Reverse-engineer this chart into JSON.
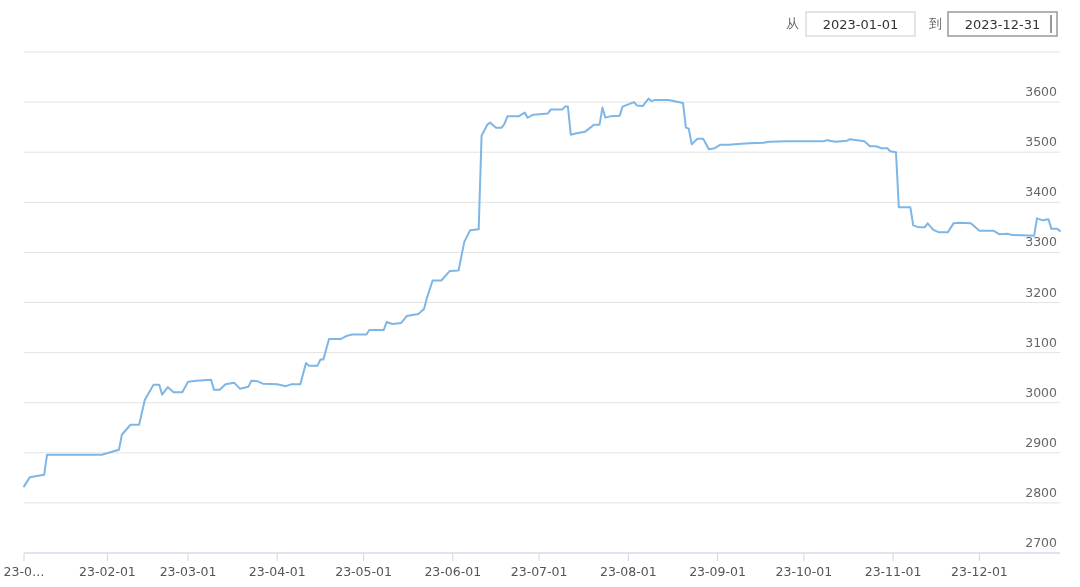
{
  "chart_data": {
    "type": "line",
    "annotations": [
      "从",
      "2023-01-01",
      "到",
      "2023-12-31"
    ],
    "xlim": [
      "2023-01-03",
      "2023-12-29"
    ],
    "ylim": [
      2700,
      3700
    ],
    "xticks": [
      {
        "value": "2023-01-03",
        "label": "23-0…"
      },
      {
        "value": "2023-02-01",
        "label": "23-02-01"
      },
      {
        "value": "2023-03-01",
        "label": "23-03-01"
      },
      {
        "value": "2023-04-01",
        "label": "23-04-01"
      },
      {
        "value": "2023-05-01",
        "label": "23-05-01"
      },
      {
        "value": "2023-06-01",
        "label": "23-06-01"
      },
      {
        "value": "2023-07-01",
        "label": "23-07-01"
      },
      {
        "value": "2023-08-01",
        "label": "23-08-01"
      },
      {
        "value": "2023-09-01",
        "label": "23-09-01"
      },
      {
        "value": "2023-10-01",
        "label": "23-10-01"
      },
      {
        "value": "2023-11-01",
        "label": "23-11-01"
      },
      {
        "value": "2023-12-01",
        "label": "23-12-01"
      }
    ],
    "yticks": [
      2700,
      2800,
      2900,
      3000,
      3100,
      3200,
      3300,
      3400,
      3500,
      3600,
      {
        "value": 3700,
        "label": null
      }
    ],
    "grid": "y",
    "x": [
      "2023-01-03",
      "2023-01-05",
      "2023-01-10",
      "2023-01-11",
      "2023-01-30",
      "2023-02-05",
      "2023-02-06",
      "2023-02-09",
      "2023-02-12",
      "2023-02-14",
      "2023-02-17",
      "2023-02-19",
      "2023-02-20",
      "2023-02-22",
      "2023-02-24",
      "2023-02-27",
      "2023-03-01",
      "2023-03-04",
      "2023-03-09",
      "2023-03-10",
      "2023-03-12",
      "2023-03-14",
      "2023-03-17",
      "2023-03-19",
      "2023-03-22",
      "2023-03-23",
      "2023-03-25",
      "2023-03-27",
      "2023-04-01",
      "2023-04-04",
      "2023-04-06",
      "2023-04-09",
      "2023-04-11",
      "2023-04-12",
      "2023-04-15",
      "2023-04-16",
      "2023-04-17",
      "2023-04-19",
      "2023-04-23",
      "2023-04-25",
      "2023-04-27",
      "2023-05-02",
      "2023-05-03",
      "2023-05-08",
      "2023-05-09",
      "2023-05-11",
      "2023-05-14",
      "2023-05-16",
      "2023-05-20",
      "2023-05-22",
      "2023-05-23",
      "2023-05-25",
      "2023-05-28",
      "2023-05-31",
      "2023-06-03",
      "2023-06-05",
      "2023-06-07",
      "2023-06-10",
      "2023-06-11",
      "2023-06-13",
      "2023-06-14",
      "2023-06-16",
      "2023-06-18",
      "2023-06-19",
      "2023-06-20",
      "2023-06-24",
      "2023-06-26",
      "2023-06-27",
      "2023-06-29",
      "2023-07-04",
      "2023-07-05",
      "2023-07-09",
      "2023-07-10",
      "2023-07-11",
      "2023-07-12",
      "2023-07-14",
      "2023-07-17",
      "2023-07-19",
      "2023-07-20",
      "2023-07-22",
      "2023-07-23",
      "2023-07-24",
      "2023-07-26",
      "2023-07-29",
      "2023-07-30",
      "2023-08-03",
      "2023-08-04",
      "2023-08-06",
      "2023-08-08",
      "2023-08-09",
      "2023-08-10",
      "2023-08-15",
      "2023-08-20",
      "2023-08-21",
      "2023-08-22",
      "2023-08-23",
      "2023-08-25",
      "2023-08-27",
      "2023-08-29",
      "2023-08-31",
      "2023-09-02",
      "2023-09-05",
      "2023-09-07",
      "2023-09-12",
      "2023-09-17",
      "2023-09-19",
      "2023-09-25",
      "2023-10-08",
      "2023-10-09",
      "2023-10-12",
      "2023-10-16",
      "2023-10-17",
      "2023-10-22",
      "2023-10-24",
      "2023-10-26",
      "2023-10-28",
      "2023-10-30",
      "2023-10-31",
      "2023-11-02",
      "2023-11-03",
      "2023-11-07",
      "2023-11-08",
      "2023-11-10",
      "2023-11-12",
      "2023-11-13",
      "2023-11-15",
      "2023-11-17",
      "2023-11-20",
      "2023-11-22",
      "2023-11-24",
      "2023-11-28",
      "2023-12-01",
      "2023-12-06",
      "2023-12-08",
      "2023-12-11",
      "2023-12-12",
      "2023-12-20",
      "2023-12-21",
      "2023-12-23",
      "2023-12-25",
      "2023-12-26",
      "2023-12-28",
      "2023-12-29"
    ],
    "series": [
      {
        "color": "#7eb6e6",
        "values": [
          2833,
          2851,
          2856,
          2896,
          2896,
          2906,
          2936,
          2956,
          2956,
          3006,
          3036,
          3036,
          3016,
          3031,
          3021,
          3021,
          3042,
          3044,
          3046,
          3026,
          3026,
          3037,
          3040,
          3028,
          3032,
          3044,
          3043,
          3038,
          3037,
          3033,
          3037,
          3037,
          3079,
          3074,
          3074,
          3086,
          3086,
          3127,
          3127,
          3133,
          3136,
          3136,
          3145,
          3145,
          3161,
          3157,
          3159,
          3173,
          3177,
          3187,
          3209,
          3244,
          3244,
          3263,
          3264,
          3321,
          3344,
          3346,
          3533,
          3555,
          3559,
          3549,
          3549,
          3557,
          3572,
          3572,
          3579,
          3569,
          3575,
          3577,
          3585,
          3585,
          3591,
          3591,
          3535,
          3538,
          3541,
          3550,
          3555,
          3555,
          3589,
          3569,
          3572,
          3573,
          3591,
          3600,
          3593,
          3592,
          3607,
          3602,
          3604,
          3604,
          3598,
          3549,
          3547,
          3516,
          3527,
          3527,
          3506,
          3508,
          3515,
          3515,
          3516,
          3518,
          3519,
          3521,
          3522,
          3522,
          3524,
          3521,
          3523,
          3526,
          3522,
          3512,
          3512,
          3508,
          3508,
          3502,
          3500,
          3390,
          3390,
          3354,
          3350,
          3350,
          3358,
          3345,
          3340,
          3340,
          3358,
          3359,
          3358,
          3343,
          3343,
          3336,
          3337,
          3335,
          3333,
          3368,
          3364,
          3366,
          3347,
          3347,
          3343
        ]
      }
    ]
  }
}
